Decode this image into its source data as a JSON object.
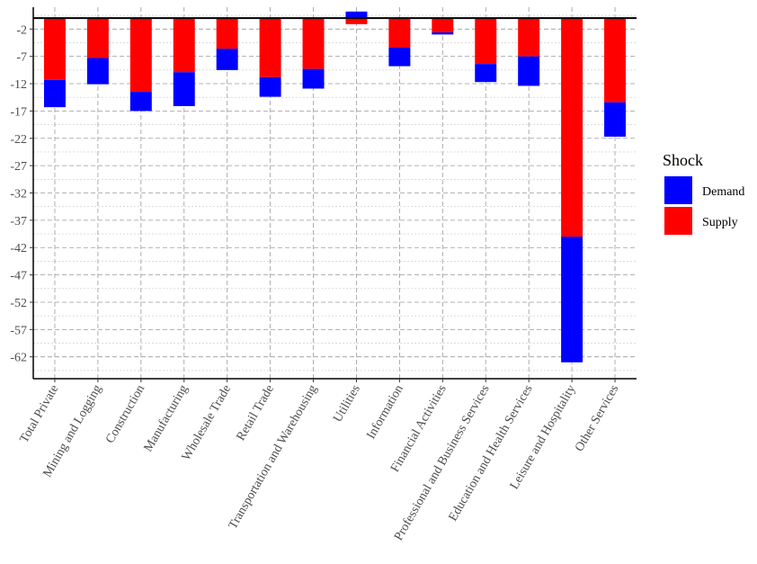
{
  "chart_data": {
    "type": "bar",
    "stacked": true,
    "title": "",
    "xlabel": "",
    "ylabel": "",
    "ylim": [
      -66,
      2
    ],
    "yticks": [
      -2,
      -7,
      -12,
      -17,
      -22,
      -27,
      -32,
      -37,
      -42,
      -47,
      -52,
      -57,
      -62
    ],
    "grid": true,
    "legend_position": "right",
    "legend_title": "Shock",
    "categories": [
      "Total Private",
      "Mining and Logging",
      "Construction",
      "Manufacturing",
      "Wholesale Trade",
      "Retail Trade",
      "Transportation and Warehousing",
      "Utilities",
      "Information",
      "Financial Activities",
      "Professional and Business Services",
      "Education and Health Services",
      "Leisure and Hospitality",
      "Other Services"
    ],
    "series": [
      {
        "name": "Demand",
        "color": "#0000ff",
        "values": [
          -5.0,
          -4.8,
          -3.5,
          -6.2,
          -3.9,
          -3.6,
          -3.6,
          1.2,
          -3.4,
          -0.4,
          -3.3,
          -5.4,
          -23.0,
          -6.3
        ]
      },
      {
        "name": "Supply",
        "color": "#ff0000",
        "values": [
          -11.3,
          -7.3,
          -13.5,
          -9.9,
          -5.6,
          -10.8,
          -9.3,
          -1.1,
          -5.4,
          -2.6,
          -8.4,
          -7.0,
          -40.0,
          -15.4
        ]
      }
    ]
  }
}
